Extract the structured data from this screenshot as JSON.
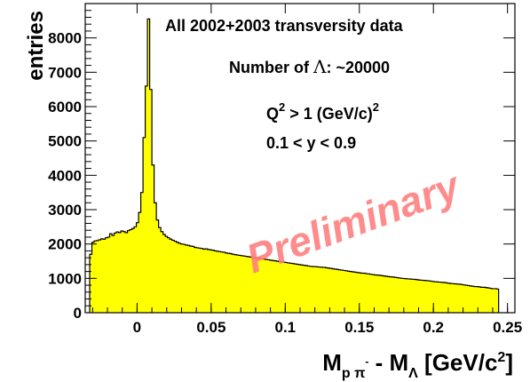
{
  "chart_data": {
    "type": "bar",
    "histogram_style": "step-filled",
    "fill_color": "#ffff00",
    "line_color": "#000000",
    "xlabel": {
      "main": "M",
      "sub1": "p π",
      "sup1": "-",
      "dash": " - M",
      "sub2": "Λ",
      "bracket": " [GeV/c",
      "sup2": "2",
      "close": "]"
    },
    "ylabel": "entries",
    "xlim": [
      -0.035,
      0.255
    ],
    "ylim": [
      0,
      9000
    ],
    "grid": false,
    "x_ticks": [
      {
        "value": 0,
        "label": "0"
      },
      {
        "value": 0.05,
        "label": "0.05"
      },
      {
        "value": 0.1,
        "label": "0.1"
      },
      {
        "value": 0.15,
        "label": "0.15"
      },
      {
        "value": 0.2,
        "label": "0.2"
      },
      {
        "value": 0.25,
        "label": "0.25"
      }
    ],
    "y_ticks": [
      {
        "value": 0,
        "label": "0"
      },
      {
        "value": 1000,
        "label": "1000"
      },
      {
        "value": 2000,
        "label": "2000"
      },
      {
        "value": 3000,
        "label": "3000"
      },
      {
        "value": 4000,
        "label": "4000"
      },
      {
        "value": 5000,
        "label": "5000"
      },
      {
        "value": 6000,
        "label": "6000"
      },
      {
        "value": 7000,
        "label": "7000"
      },
      {
        "value": 8000,
        "label": "8000"
      }
    ],
    "annotations": {
      "title": "All 2002+2003 transversity data",
      "count_prefix": "Number of ",
      "count_symbol": "Λ",
      "count_suffix": ": ~20000",
      "q2_a": "Q",
      "q2_sup": "2",
      "q2_b": " > 1 (GeV/c)",
      "q2_sup2": "2",
      "y_cut": "0.1 < y < 0.9",
      "watermark": "Preliminary"
    },
    "series": [
      {
        "x_start": -0.032,
        "bin_width": 0.0015,
        "values": [
          1700,
          2050,
          2090,
          2100,
          2120,
          2150,
          2140,
          2180,
          2200,
          2300,
          2250,
          2320,
          2350,
          2330,
          2380,
          2360,
          2330,
          2390,
          2420,
          2450,
          2500,
          2620,
          2920,
          3500,
          5100,
          6600,
          8550,
          6500,
          4300,
          3200,
          2700,
          2480,
          2360,
          2280,
          2220,
          2180,
          2140,
          2110,
          2080,
          2050,
          2020,
          2000,
          1990,
          1970,
          1960,
          1940,
          1930,
          1900,
          1890,
          1880,
          1870,
          1850,
          1860,
          1840,
          1830,
          1820,
          1800,
          1790,
          1780,
          1770,
          1760,
          1740,
          1730,
          1720,
          1700,
          1690,
          1680,
          1670,
          1660,
          1650,
          1640,
          1630,
          1620,
          1610,
          1600,
          1590,
          1580,
          1570,
          1560,
          1550,
          1540,
          1530,
          1520,
          1510,
          1500,
          1490,
          1480,
          1470,
          1460,
          1450,
          1440,
          1430,
          1420,
          1410,
          1400,
          1390,
          1380,
          1370,
          1360,
          1350,
          1345,
          1340,
          1335,
          1330,
          1325,
          1320,
          1310,
          1300,
          1290,
          1280,
          1270,
          1260,
          1250,
          1240,
          1230,
          1220,
          1210,
          1200,
          1190,
          1180,
          1170,
          1160,
          1150,
          1150,
          1140,
          1130,
          1120,
          1110,
          1100,
          1095,
          1090,
          1080,
          1070,
          1060,
          1050,
          1045,
          1040,
          1030,
          1020,
          1010,
          1000,
          995,
          990,
          985,
          980,
          975,
          970,
          960,
          950,
          945,
          940,
          935,
          930,
          920,
          910,
          900,
          895,
          890,
          885,
          880,
          870,
          860,
          850,
          845,
          840,
          835,
          830,
          820,
          810,
          800,
          790,
          780,
          770,
          760,
          760,
          750,
          740,
          740,
          730,
          720,
          710,
          700,
          700,
          690
        ]
      }
    ]
  }
}
